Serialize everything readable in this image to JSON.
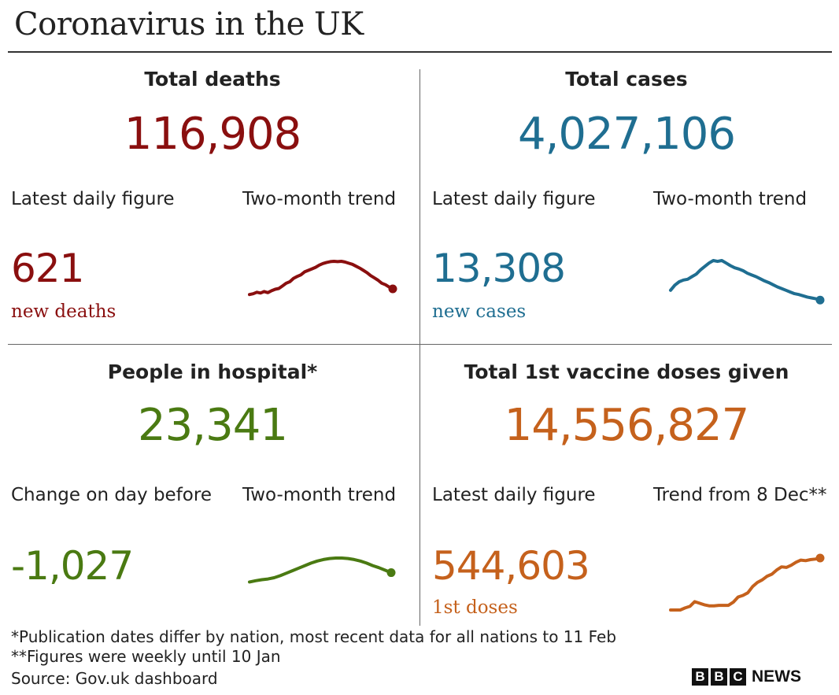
{
  "title": "Coronavirus in the UK",
  "colors": {
    "deaths": "#8a0f0f",
    "cases": "#1f6e91",
    "hospital": "#4a7a12",
    "vaccine": "#c5611c"
  },
  "panels": {
    "deaths": {
      "title": "Total deaths",
      "total": "116,908",
      "latest_label": "Latest daily figure",
      "trend_label": "Two-month trend",
      "latest_value": "621",
      "latest_unit": "new deaths"
    },
    "cases": {
      "title": "Total cases",
      "total": "4,027,106",
      "latest_label": "Latest daily figure",
      "trend_label": "Two-month trend",
      "latest_value": "13,308",
      "latest_unit": "new cases"
    },
    "hospital": {
      "title": "People in hospital*",
      "total": "23,341",
      "latest_label": "Change on day before",
      "trend_label": "Two-month trend",
      "latest_value": "-1,027"
    },
    "vaccine": {
      "title": "Total 1st vaccine doses given",
      "total": "14,556,827",
      "latest_label": "Latest daily figure",
      "trend_label": "Trend from 8 Dec**",
      "latest_value": "544,603",
      "latest_unit": "1st doses"
    }
  },
  "footnotes": {
    "note1": "*Publication dates differ by nation, most recent data for all nations to 11 Feb",
    "note2": "**Figures were weekly until 10 Jan",
    "source": "Source: Gov.uk dashboard"
  },
  "logo": {
    "letters": [
      "B",
      "B",
      "C"
    ],
    "word": "NEWS"
  },
  "chart_data": [
    {
      "type": "line",
      "name": "deaths-trend",
      "color": "#8a0f0f",
      "values": [
        0.1,
        0.12,
        0.16,
        0.14,
        0.18,
        0.15,
        0.2,
        0.24,
        0.26,
        0.33,
        0.4,
        0.44,
        0.53,
        0.58,
        0.62,
        0.7,
        0.74,
        0.78,
        0.82,
        0.88,
        0.92,
        0.95,
        0.97,
        0.98,
        0.97,
        0.98,
        0.96,
        0.93,
        0.9,
        0.85,
        0.8,
        0.74,
        0.68,
        0.6,
        0.54,
        0.48,
        0.4,
        0.36,
        0.3,
        0.25
      ]
    },
    {
      "type": "line",
      "name": "cases-trend",
      "color": "#1f6e91",
      "values": [
        0.3,
        0.42,
        0.5,
        0.54,
        0.56,
        0.62,
        0.68,
        0.78,
        0.86,
        0.94,
        1.0,
        0.98,
        1.0,
        0.94,
        0.88,
        0.83,
        0.8,
        0.76,
        0.7,
        0.66,
        0.62,
        0.57,
        0.52,
        0.48,
        0.43,
        0.38,
        0.34,
        0.3,
        0.26,
        0.22,
        0.2,
        0.17,
        0.14,
        0.12,
        0.1,
        0.07
      ]
    },
    {
      "type": "line",
      "name": "hospital-trend",
      "color": "#4a7a12",
      "values": [
        0.05,
        0.1,
        0.14,
        0.17,
        0.22,
        0.3,
        0.4,
        0.5,
        0.6,
        0.7,
        0.8,
        0.88,
        0.94,
        0.98,
        1.0,
        1.0,
        0.98,
        0.94,
        0.88,
        0.8,
        0.7,
        0.62,
        0.52,
        0.42
      ]
    },
    {
      "type": "line",
      "name": "vaccine-trend",
      "color": "#c5611c",
      "values": [
        0.0,
        0.0,
        0.0,
        0.04,
        0.07,
        0.16,
        0.13,
        0.1,
        0.08,
        0.08,
        0.09,
        0.09,
        0.09,
        0.15,
        0.25,
        0.28,
        0.33,
        0.45,
        0.53,
        0.58,
        0.65,
        0.69,
        0.77,
        0.83,
        0.82,
        0.86,
        0.92,
        0.96,
        0.95,
        0.97,
        0.98,
        1.0
      ]
    }
  ]
}
